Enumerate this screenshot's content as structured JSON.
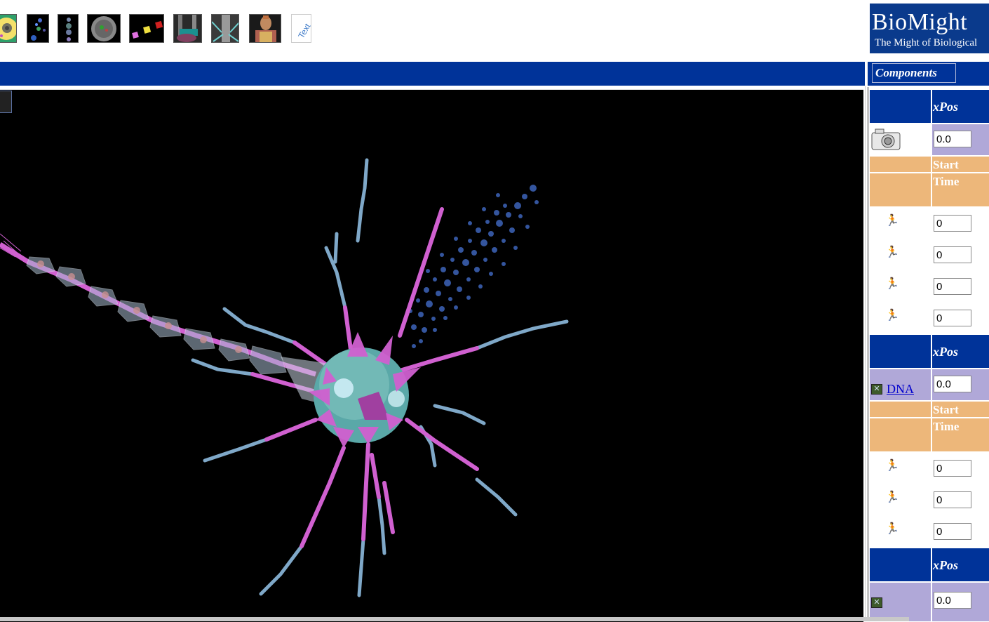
{
  "toolbar": {
    "thumbnails": [
      {
        "name": "cell-thumbnail",
        "icon": "cell-icon"
      },
      {
        "name": "molecules-thumbnail",
        "icon": "molecules-icon"
      },
      {
        "name": "chain-thumbnail",
        "icon": "chain-icon"
      },
      {
        "name": "sphere-thumbnail",
        "icon": "sphere-icon"
      },
      {
        "name": "squares-thumbnail",
        "icon": "squares-icon"
      },
      {
        "name": "tissue-thumbnail",
        "icon": "tissue-icon"
      },
      {
        "name": "structure-thumbnail",
        "icon": "structure-icon"
      },
      {
        "name": "body-thumbnail",
        "icon": "body-icon"
      },
      {
        "name": "text-thumbnail",
        "icon": "text-icon",
        "label": "Text"
      }
    ]
  },
  "logo": {
    "title": "BioMight",
    "tagline": "The Might of Biological"
  },
  "components": {
    "header": "Components",
    "xpos_label": "xPos",
    "start_label": "Start",
    "time_label": "Time",
    "camera_icon": "camera-icon",
    "runner_icon": "running-figure-icon",
    "groups": [
      {
        "type": "camera",
        "xpos": "0.0",
        "times": [
          "0",
          "0",
          "0",
          "0"
        ]
      },
      {
        "type": "link",
        "label": "DNA",
        "xpos": "0.0",
        "times": [
          "0",
          "0",
          "0"
        ]
      },
      {
        "type": "link",
        "label": "",
        "xpos": "0.0",
        "times": []
      }
    ]
  },
  "colors": {
    "navy": "#003399",
    "lavender": "#b0a8d8",
    "tan": "#edb77a",
    "viewer_bg": "#000000",
    "dendrite_pink": "#d060d0",
    "dendrite_blue": "#7fa8c8"
  }
}
